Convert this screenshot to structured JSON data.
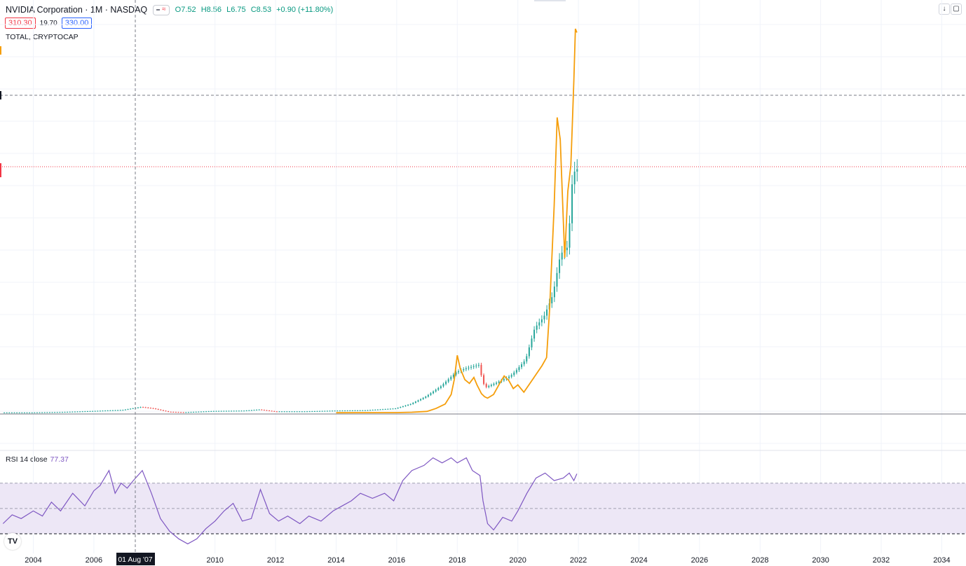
{
  "header": {
    "symbol": "NVIDIA Corporation · 1M · NASDAQ",
    "ohlc": {
      "open": "O7.52",
      "high": "H8.56",
      "low": "L6.75",
      "close": "C8.53",
      "change": "+0.90 (+11.80%)"
    },
    "sell_price": "310.30",
    "spread": "19.70",
    "buy_price": "330.00"
  },
  "compare_label": "TOTAL, CRYPTOCAP",
  "rsi": {
    "label": "RSI 14 close",
    "value": "77.37"
  },
  "crosshair_date": "01 Aug '07",
  "colors": {
    "up": "#26a69a",
    "down": "#ef5350",
    "compare": "#f59e0b",
    "rsi": "#7e57c2",
    "rsi_band": "#ede7f6",
    "last_price": "#f23645"
  },
  "chart_data": [
    {
      "type": "line",
      "series": [
        {
          "name": "TOTAL, CRYPTOCAP",
          "points": [
            [
              2014.0,
              0.2
            ],
            [
              2015.0,
              0.3
            ],
            [
              2016.0,
              0.4
            ],
            [
              2016.5,
              0.9
            ],
            [
              2017.0,
              2.0
            ],
            [
              2017.3,
              6.0
            ],
            [
              2017.6,
              12.0
            ],
            [
              2017.8,
              25.0
            ],
            [
              2017.9,
              45.0
            ],
            [
              2018.0,
              78.0
            ],
            [
              2018.1,
              60.0
            ],
            [
              2018.25,
              45.0
            ],
            [
              2018.4,
              40.0
            ],
            [
              2018.55,
              48.0
            ],
            [
              2018.65,
              38.0
            ],
            [
              2018.8,
              26.0
            ],
            [
              2018.9,
              22.0
            ],
            [
              2019.0,
              20.0
            ],
            [
              2019.2,
              25.0
            ],
            [
              2019.4,
              40.0
            ],
            [
              2019.55,
              50.0
            ],
            [
              2019.7,
              44.0
            ],
            [
              2019.85,
              33.0
            ],
            [
              2020.0,
              38.0
            ],
            [
              2020.2,
              28.0
            ],
            [
              2020.4,
              40.0
            ],
            [
              2020.6,
              52.0
            ],
            [
              2020.8,
              64.0
            ],
            [
              2020.95,
              75.0
            ],
            [
              2021.05,
              140.0
            ],
            [
              2021.2,
              280.0
            ],
            [
              2021.3,
              400.0
            ],
            [
              2021.4,
              370.0
            ],
            [
              2021.55,
              210.0
            ],
            [
              2021.65,
              300.0
            ],
            [
              2021.75,
              335.0
            ],
            [
              2021.8,
              390.0
            ],
            [
              2021.85,
              450.0
            ],
            [
              2021.9,
              520.0
            ],
            [
              2021.95,
              515.0
            ]
          ]
        },
        {
          "name": "NVIDIA",
          "points": [
            [
              2003.0,
              0.5
            ],
            [
              2004.0,
              0.5
            ],
            [
              2005.0,
              1.2
            ],
            [
              2006.0,
              2.5
            ],
            [
              2007.0,
              4.0
            ],
            [
              2007.6,
              8.0
            ],
            [
              2008.0,
              6.0
            ],
            [
              2008.5,
              1.5
            ],
            [
              2009.0,
              0.8
            ],
            [
              2010.0,
              2.5
            ],
            [
              2011.0,
              3.0
            ],
            [
              2011.5,
              4.5
            ],
            [
              2012.0,
              2.0
            ],
            [
              2013.0,
              2.0
            ],
            [
              2014.0,
              3.0
            ],
            [
              2015.0,
              3.5
            ],
            [
              2016.0,
              6.0
            ],
            [
              2016.5,
              12.0
            ],
            [
              2017.0,
              22.0
            ],
            [
              2017.5,
              36.0
            ],
            [
              2018.0,
              55.0
            ],
            [
              2018.3,
              60.0
            ],
            [
              2018.75,
              65.0
            ],
            [
              2018.9,
              40.0
            ],
            [
              2019.0,
              35.0
            ],
            [
              2019.4,
              42.0
            ],
            [
              2019.8,
              50.0
            ],
            [
              2020.0,
              58.0
            ],
            [
              2020.3,
              72.0
            ],
            [
              2020.6,
              115.0
            ],
            [
              2020.9,
              130.0
            ],
            [
              2021.2,
              160.0
            ],
            [
              2021.45,
              215.0
            ],
            [
              2021.7,
              225.0
            ],
            [
              2021.85,
              320.0
            ],
            [
              2021.95,
              330.0
            ]
          ]
        }
      ],
      "xlim": [
        2002.9,
        2034.8
      ],
      "x_ticks": [
        "2004",
        "2006",
        "2010",
        "2012",
        "2014",
        "2016",
        "2018",
        "2020",
        "2022",
        "2024",
        "2026",
        "2028",
        "2030",
        "2032",
        "2034"
      ],
      "ylim": [
        -10,
        540
      ],
      "grid": true
    },
    {
      "type": "line",
      "name": "RSI 14 close",
      "series": [
        {
          "name": "RSI",
          "points": [
            [
              2003.0,
              38
            ],
            [
              2003.3,
              45
            ],
            [
              2003.6,
              42
            ],
            [
              2004.0,
              48
            ],
            [
              2004.3,
              44
            ],
            [
              2004.6,
              55
            ],
            [
              2004.9,
              48
            ],
            [
              2005.3,
              62
            ],
            [
              2005.7,
              52
            ],
            [
              2006.0,
              64
            ],
            [
              2006.2,
              68
            ],
            [
              2006.5,
              80
            ],
            [
              2006.7,
              62
            ],
            [
              2006.9,
              70
            ],
            [
              2007.1,
              66
            ],
            [
              2007.3,
              72
            ],
            [
              2007.6,
              80
            ],
            [
              2007.9,
              62
            ],
            [
              2008.2,
              42
            ],
            [
              2008.5,
              32
            ],
            [
              2008.8,
              26
            ],
            [
              2009.1,
              22
            ],
            [
              2009.4,
              26
            ],
            [
              2009.7,
              34
            ],
            [
              2010.0,
              40
            ],
            [
              2010.3,
              48
            ],
            [
              2010.6,
              54
            ],
            [
              2010.9,
              40
            ],
            [
              2011.2,
              42
            ],
            [
              2011.5,
              65
            ],
            [
              2011.8,
              46
            ],
            [
              2012.1,
              40
            ],
            [
              2012.4,
              44
            ],
            [
              2012.8,
              38
            ],
            [
              2013.1,
              44
            ],
            [
              2013.5,
              40
            ],
            [
              2013.9,
              48
            ],
            [
              2014.2,
              52
            ],
            [
              2014.5,
              56
            ],
            [
              2014.8,
              62
            ],
            [
              2015.2,
              58
            ],
            [
              2015.6,
              62
            ],
            [
              2015.9,
              56
            ],
            [
              2016.2,
              72
            ],
            [
              2016.5,
              80
            ],
            [
              2016.9,
              84
            ],
            [
              2017.2,
              90
            ],
            [
              2017.5,
              86
            ],
            [
              2017.8,
              90
            ],
            [
              2018.0,
              86
            ],
            [
              2018.3,
              90
            ],
            [
              2018.5,
              80
            ],
            [
              2018.75,
              76
            ],
            [
              2018.85,
              56
            ],
            [
              2019.0,
              38
            ],
            [
              2019.2,
              33
            ],
            [
              2019.5,
              43
            ],
            [
              2019.8,
              40
            ],
            [
              2020.0,
              48
            ],
            [
              2020.3,
              62
            ],
            [
              2020.6,
              74
            ],
            [
              2020.9,
              78
            ],
            [
              2021.2,
              72
            ],
            [
              2021.5,
              74
            ],
            [
              2021.7,
              78
            ],
            [
              2021.85,
              72
            ],
            [
              2021.95,
              77.37
            ]
          ]
        }
      ],
      "ylim": [
        20,
        92
      ],
      "bands": [
        30,
        50,
        70
      ]
    }
  ]
}
